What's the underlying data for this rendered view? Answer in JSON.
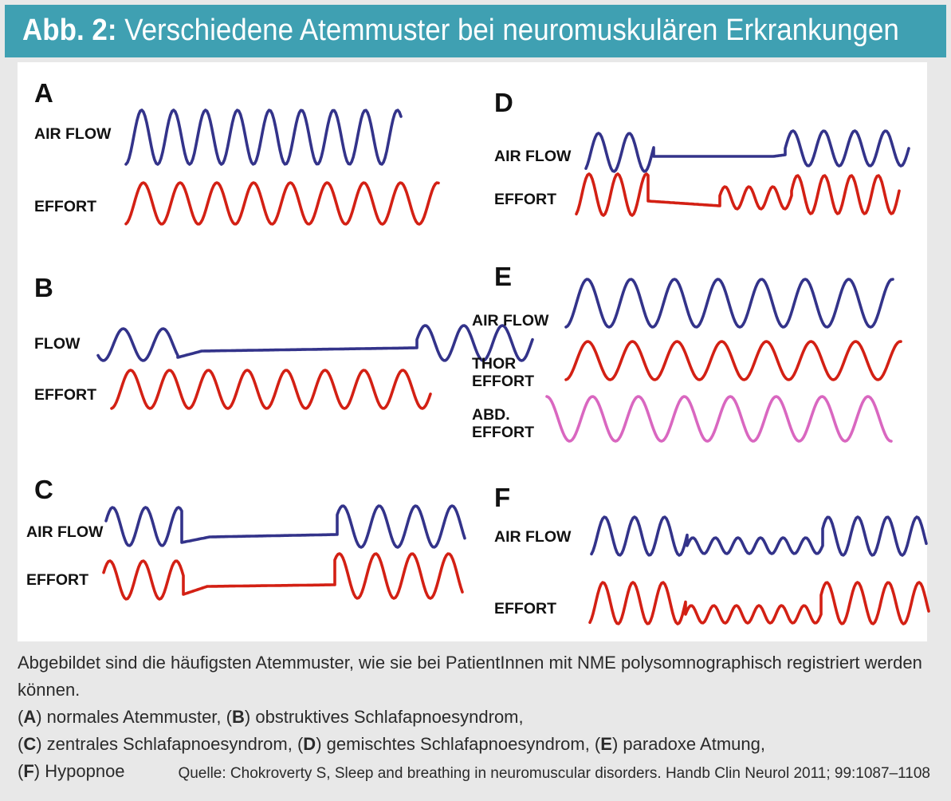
{
  "header": {
    "prefix": "Abb. 2:",
    "title": "Verschiedene Atemmuster bei neuromuskulären Erkrankungen"
  },
  "colors": {
    "header_bg": "#3fa0b2",
    "flow": "#33338a",
    "effort": "#d32014",
    "abd_effort": "#d967c0"
  },
  "panels": {
    "A": {
      "label": "A",
      "traces": [
        "AIR FLOW",
        "EFFORT"
      ]
    },
    "B": {
      "label": "B",
      "traces": [
        "FLOW",
        "EFFORT"
      ]
    },
    "C": {
      "label": "C",
      "traces": [
        "AIR FLOW",
        "EFFORT"
      ]
    },
    "D": {
      "label": "D",
      "traces": [
        "AIR FLOW",
        "EFFORT"
      ]
    },
    "E": {
      "label": "E",
      "traces": [
        "AIR FLOW",
        "THOR",
        "EFFORT",
        "ABD.",
        "EFFORT"
      ]
    },
    "F": {
      "label": "F",
      "traces": [
        "AIR FLOW",
        "EFFORT"
      ]
    }
  },
  "caption": {
    "intro": "Abgebildet sind die häufigsten Atemmuster, wie sie bei PatientInnen mit NME polysomnographisch registriert werden können.",
    "items": [
      {
        "letter": "A",
        "text": "normales Atemmuster"
      },
      {
        "letter": "B",
        "text": "obstruktives Schlafapnoesyndrom"
      },
      {
        "letter": "C",
        "text": "zentrales Schlafapnoesyndrom"
      },
      {
        "letter": "D",
        "text": "gemischtes Schlafapnoesyndrom"
      },
      {
        "letter": "E",
        "text": "paradoxe Atmung"
      },
      {
        "letter": "F",
        "text": "Hypopnoe"
      }
    ]
  },
  "source": "Quelle: Chokroverty S, Sleep and breathing in neuromuscular disorders. Handb Clin Neurol 2011; 99:1087–1108"
}
